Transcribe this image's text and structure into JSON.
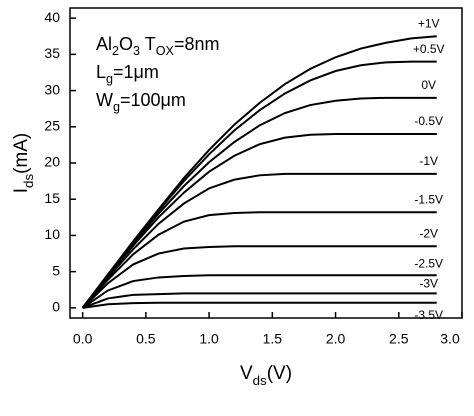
{
  "chart_data": {
    "type": "line",
    "xlabel": [
      "V",
      "ds",
      "(V)"
    ],
    "ylabel": [
      "I",
      "ds",
      "(mA)"
    ],
    "annotations": [
      [
        "Al",
        "2",
        "O",
        "3",
        " T",
        "OX",
        "=8nm"
      ],
      [
        "L",
        "g",
        "=1μm"
      ],
      [
        "W",
        "g",
        "=100μm"
      ]
    ],
    "x": [
      0,
      0.2,
      0.4,
      0.6,
      0.8,
      1.0,
      1.2,
      1.4,
      1.6,
      1.8,
      2.0,
      2.2,
      2.4,
      2.6,
      2.8
    ],
    "series": [
      {
        "name": "+1V",
        "color": "#000000",
        "values": [
          0,
          4.6,
          9.2,
          13.6,
          17.9,
          21.8,
          25.3,
          28.3,
          30.9,
          33.0,
          34.6,
          35.8,
          36.6,
          37.2,
          37.5
        ]
      },
      {
        "name": "+0.5V",
        "color": "#000000",
        "values": [
          0,
          4.6,
          9.1,
          13.4,
          17.5,
          21.2,
          24.5,
          27.3,
          29.6,
          31.4,
          32.7,
          33.5,
          33.9,
          34.0,
          34.0
        ]
      },
      {
        "name": "0V",
        "color": "#000000",
        "values": [
          0,
          4.5,
          8.9,
          13.0,
          16.8,
          20.1,
          22.9,
          25.2,
          26.9,
          28.0,
          28.6,
          28.9,
          29.0,
          29.0,
          29.0
        ]
      },
      {
        "name": "-0.5V",
        "color": "#000000",
        "values": [
          0,
          4.4,
          8.6,
          12.5,
          15.9,
          18.8,
          21.0,
          22.6,
          23.5,
          23.9,
          24.0,
          24.0,
          24.0,
          24.0,
          24.0
        ]
      },
      {
        "name": "-1V",
        "color": "#000000",
        "values": [
          0,
          4.2,
          8.1,
          11.6,
          14.4,
          16.5,
          17.7,
          18.3,
          18.5,
          18.5,
          18.5,
          18.5,
          18.5,
          18.5,
          18.5
        ]
      },
      {
        "name": "-1.5V",
        "color": "#000000",
        "values": [
          0,
          3.9,
          7.4,
          10.1,
          11.9,
          12.8,
          13.1,
          13.2,
          13.2,
          13.2,
          13.2,
          13.2,
          13.2,
          13.2,
          13.2
        ]
      },
      {
        "name": "-2V",
        "color": "#000000",
        "values": [
          0,
          3.4,
          6.0,
          7.5,
          8.2,
          8.4,
          8.5,
          8.5,
          8.5,
          8.5,
          8.5,
          8.5,
          8.5,
          8.5,
          8.5
        ]
      },
      {
        "name": "-2.5V",
        "color": "#000000",
        "values": [
          0,
          2.4,
          3.7,
          4.2,
          4.4,
          4.5,
          4.5,
          4.5,
          4.5,
          4.5,
          4.5,
          4.5,
          4.5,
          4.5,
          4.5
        ]
      },
      {
        "name": "-3V",
        "color": "#000000",
        "values": [
          0,
          1.3,
          1.8,
          1.9,
          2.0,
          2.0,
          2.0,
          2.0,
          2.0,
          2.0,
          2.0,
          2.0,
          2.0,
          2.0,
          2.0
        ]
      },
      {
        "name": "-3.5V",
        "color": "#000000",
        "values": [
          0,
          0.5,
          0.65,
          0.7,
          0.7,
          0.7,
          0.7,
          0.7,
          0.7,
          0.7,
          0.7,
          0.7,
          0.7,
          0.7,
          0.7
        ]
      }
    ],
    "xlim": [
      -0.1,
      3.0
    ],
    "ylim": [
      -1.4,
      41.4
    ],
    "xticks": [
      {
        "value": 0,
        "label": "0.0"
      },
      0.5,
      {
        "value": 1,
        "label": "1.0"
      },
      1.5,
      {
        "value": 2,
        "label": "2.0"
      },
      2.5,
      {
        "value": 3,
        "label": "3.0"
      }
    ],
    "yticks": [
      0,
      5,
      10,
      15,
      20,
      25,
      30,
      35,
      40
    ],
    "grid": false
  }
}
